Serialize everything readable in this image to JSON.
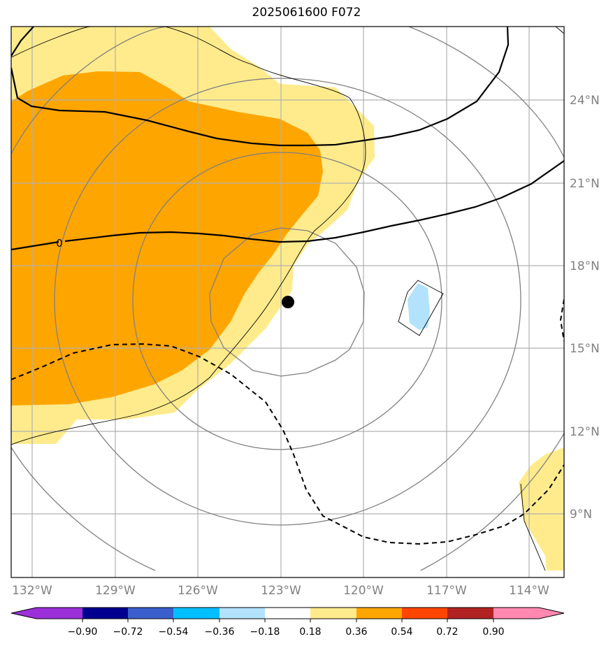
{
  "title": "2025061600 F072",
  "map": {
    "lon_labels": [
      "132°W",
      "129°W",
      "126°W",
      "123°W",
      "120°W",
      "117°W",
      "114°W"
    ],
    "lat_labels": [
      "24°N",
      "21°N",
      "18°N",
      "15°N",
      "12°N",
      "9°N"
    ],
    "lon_ticks": [
      -132,
      -129,
      -126,
      -123,
      -120,
      -117,
      -114
    ],
    "lat_ticks": [
      24,
      21,
      18,
      15,
      12,
      9
    ],
    "lon_range": [
      -132.8,
      -112.7
    ],
    "lat_range": [
      6.8,
      26.8
    ],
    "contour_zero_label": "0",
    "storm_center": {
      "lon": -122.8,
      "lat": 16.7
    }
  },
  "colorbar": {
    "labels": [
      "−0.90",
      "−0.72",
      "−0.54",
      "−0.36",
      "−0.18",
      "0.18",
      "0.36",
      "0.54",
      "0.72",
      "0.90"
    ],
    "colors": [
      "#9b30d9",
      "#000090",
      "#3a5fcd",
      "#00bfff",
      "#b2e2fc",
      "#ffffff",
      "#ffeb8c",
      "#ffa500",
      "#ff4500",
      "#b22222",
      "#ff88b0"
    ]
  },
  "colors": {
    "light_yellow": "#ffeb8c",
    "orange": "#ffa500",
    "light_blue": "#b2e2fc",
    "grid": "#b0b0b0",
    "gray_contour": "#808080",
    "tick_label": "#808080"
  }
}
